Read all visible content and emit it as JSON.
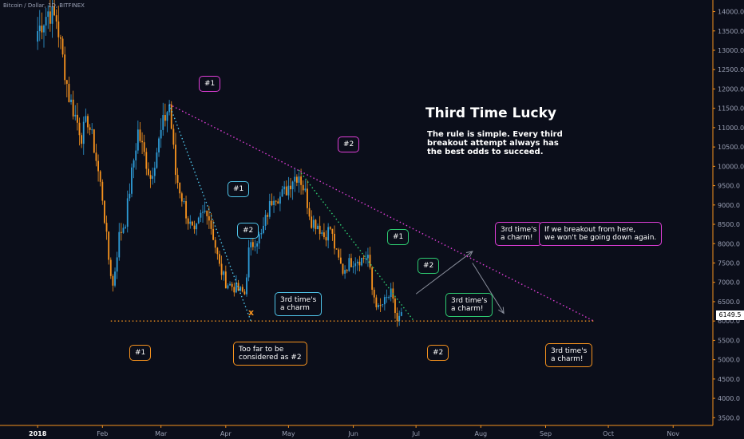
{
  "symbol": "Bitcoin / Dollar, 1D, BITFINEX",
  "annotation_title": "Third Time Lucky",
  "annotation_text": "The rule is simple. Every third breakout attempt always has the best odds to succeed.",
  "last_price": "6149.5",
  "colors": {
    "background": "#0b0e1a",
    "up_candle": "#2e9bd6",
    "down_candle": "#f6921e",
    "trendline_main": "#e03ed8",
    "trendline_secondary": "#4fc3e8",
    "trendline_green": "#2ecc71",
    "support": "#f6921e"
  },
  "callouts": [
    {
      "id": "c1",
      "text": "#1",
      "color": "#e03ed8"
    },
    {
      "id": "c2",
      "text": "#2",
      "color": "#e03ed8"
    },
    {
      "id": "c3",
      "text": "#1",
      "color": "#4fc3e8"
    },
    {
      "id": "c4",
      "text": "#2",
      "color": "#4fc3e8"
    },
    {
      "id": "c5",
      "text": "3rd time's\na charm",
      "color": "#4fc3e8"
    },
    {
      "id": "c6",
      "text": "#1",
      "color": "#2ecc71"
    },
    {
      "id": "c7",
      "text": "#2",
      "color": "#2ecc71"
    },
    {
      "id": "c8",
      "text": "3rd time's\na charm!",
      "color": "#2ecc71"
    },
    {
      "id": "c9",
      "text": "3rd time's\na charm!",
      "color": "#e03ed8"
    },
    {
      "id": "c10",
      "text": "If we breakout from here,\nwe won't be going down again.",
      "color": "#e03ed8"
    },
    {
      "id": "c11",
      "text": "#1",
      "color": "#f6921e"
    },
    {
      "id": "c12",
      "text": "Too far to be\nconsidered as #2",
      "color": "#f6921e"
    },
    {
      "id": "c13",
      "text": "#2",
      "color": "#f6921e"
    },
    {
      "id": "c14",
      "text": "3rd time's\na charm!",
      "color": "#f6921e"
    }
  ],
  "x_marker": "x",
  "chart_data": {
    "type": "candlestick",
    "y_range": [
      3300,
      14300
    ],
    "y_ticks": [
      3500,
      4000,
      4500,
      5000,
      5500,
      6000,
      6500,
      7000,
      7500,
      8000,
      8500,
      9000,
      9500,
      10000,
      10500,
      11000,
      11500,
      12000,
      12500,
      13000,
      13500,
      14000
    ],
    "x_ticks": [
      "2018",
      "Feb",
      "Mar",
      "Apr",
      "May",
      "Jun",
      "Jul",
      "Aug",
      "Sep",
      "Oct",
      "Nov"
    ],
    "close_path": [
      [
        "2018-01-01",
        13500
      ],
      [
        "2018-01-06",
        14000
      ],
      [
        "2018-01-10",
        13800
      ],
      [
        "2018-01-13",
        12800
      ],
      [
        "2018-01-16",
        11800
      ],
      [
        "2018-01-19",
        11300
      ],
      [
        "2018-01-22",
        10800
      ],
      [
        "2018-01-25",
        11200
      ],
      [
        "2018-01-28",
        10500
      ],
      [
        "2018-02-01",
        9200
      ],
      [
        "2018-02-04",
        7600
      ],
      [
        "2018-02-06",
        6900
      ],
      [
        "2018-02-09",
        8200
      ],
      [
        "2018-02-12",
        8600
      ],
      [
        "2018-02-15",
        9800
      ],
      [
        "2018-02-18",
        10900
      ],
      [
        "2018-02-21",
        10300
      ],
      [
        "2018-02-24",
        9700
      ],
      [
        "2018-02-27",
        10400
      ],
      [
        "2018-03-02",
        11100
      ],
      [
        "2018-03-05",
        11600
      ],
      [
        "2018-03-08",
        9800
      ],
      [
        "2018-03-11",
        9200
      ],
      [
        "2018-03-14",
        8600
      ],
      [
        "2018-03-17",
        8200
      ],
      [
        "2018-03-20",
        8700
      ],
      [
        "2018-03-23",
        8900
      ],
      [
        "2018-03-26",
        8200
      ],
      [
        "2018-03-29",
        7400
      ],
      [
        "2018-04-01",
        7000
      ],
      [
        "2018-04-04",
        6900
      ],
      [
        "2018-04-07",
        6800
      ],
      [
        "2018-04-10",
        6700
      ],
      [
        "2018-04-12",
        7800
      ],
      [
        "2018-04-15",
        8100
      ],
      [
        "2018-04-18",
        8200
      ],
      [
        "2018-04-21",
        8800
      ],
      [
        "2018-04-24",
        9300
      ],
      [
        "2018-04-27",
        9200
      ],
      [
        "2018-04-30",
        9400
      ],
      [
        "2018-05-03",
        9700
      ],
      [
        "2018-05-06",
        9800
      ],
      [
        "2018-05-09",
        9300
      ],
      [
        "2018-05-12",
        8600
      ],
      [
        "2018-05-15",
        8500
      ],
      [
        "2018-05-18",
        8200
      ],
      [
        "2018-05-21",
        8400
      ],
      [
        "2018-05-24",
        7700
      ],
      [
        "2018-05-27",
        7300
      ],
      [
        "2018-05-30",
        7500
      ],
      [
        "2018-06-02",
        7600
      ],
      [
        "2018-06-05",
        7600
      ],
      [
        "2018-06-08",
        7700
      ],
      [
        "2018-06-10",
        6800
      ],
      [
        "2018-06-13",
        6300
      ],
      [
        "2018-06-16",
        6500
      ],
      [
        "2018-06-19",
        6700
      ],
      [
        "2018-06-22",
        6000
      ],
      [
        "2018-06-24",
        6150
      ]
    ],
    "trendlines": [
      {
        "from": [
          "2018-03-05",
          11600
        ],
        "to": [
          "2018-09-24",
          6000
        ],
        "style": "dotted",
        "color": "#e03ed8"
      },
      {
        "from": [
          "2018-03-05",
          11600
        ],
        "to": [
          "2018-04-13",
          6000
        ],
        "style": "dotted",
        "color": "#4fc3e8"
      },
      {
        "from": [
          "2018-05-06",
          9900
        ],
        "to": [
          "2018-06-30",
          6000
        ],
        "style": "dotted",
        "color": "#2ecc71"
      },
      {
        "from": [
          "2018-02-05",
          6000
        ],
        "to": [
          "2018-09-24",
          6000
        ],
        "style": "dotted",
        "color": "#f6921e"
      }
    ],
    "arrows": [
      {
        "from": [
          "2018-07-01",
          6700
        ],
        "to": [
          "2018-07-28",
          7800
        ]
      },
      {
        "from": [
          "2018-07-28",
          7500
        ],
        "to": [
          "2018-08-12",
          6200
        ]
      }
    ]
  }
}
